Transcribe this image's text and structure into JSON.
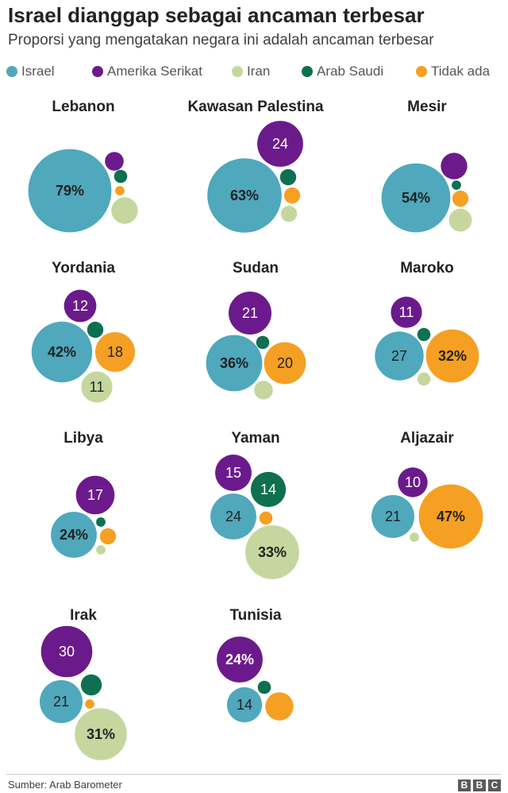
{
  "title": "Israel dianggap sebagai ancaman terbesar",
  "subtitle": "Proporsi yang mengatakan negara ini adalah ancaman terbesar",
  "source": "Sumber: Arab Barometer",
  "logo": [
    "B",
    "B",
    "C"
  ],
  "chart_data": {
    "type": "bubble",
    "legend_position": "top",
    "series": [
      {
        "name": "Israel",
        "color": "#4fa8bc"
      },
      {
        "name": "Amerika Serikat",
        "color": "#6b1a8c"
      },
      {
        "name": "Iran",
        "color": "#c5d79e"
      },
      {
        "name": "Arab Saudi",
        "color": "#0e7050"
      },
      {
        "name": "Tidak ada",
        "color": "#f5a023"
      }
    ],
    "panels": [
      {
        "title": "Lebanon",
        "values": {
          "Israel": 79,
          "Amerika Serikat": 4,
          "Iran": 8,
          "Arab Saudi": 2,
          "Tidak ada": 1
        },
        "labels": {
          "Israel": "79%"
        },
        "strong": [
          "Israel"
        ]
      },
      {
        "title": "Kawasan Palestina",
        "values": {
          "Israel": 63,
          "Amerika Serikat": 24,
          "Iran": 3,
          "Arab Saudi": 3,
          "Tidak ada": 3
        },
        "labels": {
          "Israel": "63%",
          "Amerika Serikat": "24"
        },
        "strong": [
          "Israel"
        ]
      },
      {
        "title": "Mesir",
        "values": {
          "Israel": 54,
          "Amerika Serikat": 8,
          "Iran": 6,
          "Arab Saudi": 1,
          "Tidak ada": 3
        },
        "labels": {
          "Israel": "54%"
        },
        "strong": [
          "Israel"
        ]
      },
      {
        "title": "Yordania",
        "values": {
          "Israel": 42,
          "Amerika Serikat": 12,
          "Iran": 11,
          "Arab Saudi": 3,
          "Tidak ada": 18
        },
        "labels": {
          "Israel": "42%",
          "Amerika Serikat": "12",
          "Iran": "11",
          "Tidak ada": "18"
        },
        "strong": [
          "Israel"
        ]
      },
      {
        "title": "Sudan",
        "values": {
          "Israel": 36,
          "Amerika Serikat": 21,
          "Iran": 4,
          "Arab Saudi": 2,
          "Tidak ada": 20
        },
        "labels": {
          "Israel": "36%",
          "Amerika Serikat": "21",
          "Tidak ada": "20"
        },
        "strong": [
          "Israel"
        ]
      },
      {
        "title": "Maroko",
        "values": {
          "Israel": 27,
          "Amerika Serikat": 11,
          "Iran": 2,
          "Arab Saudi": 2,
          "Tidak ada": 32
        },
        "labels": {
          "Israel": "27",
          "Amerika Serikat": "11",
          "Tidak ada": "32%"
        },
        "strong": [
          "Tidak ada"
        ]
      },
      {
        "title": "Libya",
        "values": {
          "Israel": 24,
          "Amerika Serikat": 17,
          "Iran": 1,
          "Arab Saudi": 1,
          "Tidak ada": 3
        },
        "labels": {
          "Israel": "24%",
          "Amerika Serikat": "17"
        },
        "strong": [
          "Israel"
        ]
      },
      {
        "title": "Yaman",
        "values": {
          "Israel": 24,
          "Amerika Serikat": 15,
          "Iran": 33,
          "Arab Saudi": 14,
          "Tidak ada": 2
        },
        "labels": {
          "Israel": "24",
          "Amerika Serikat": "15",
          "Iran": "33%",
          "Arab Saudi": "14"
        },
        "strong": [
          "Iran"
        ]
      },
      {
        "title": "Aljazair",
        "values": {
          "Israel": 21,
          "Amerika Serikat": 10,
          "Iran": 1,
          "Arab Saudi": 0,
          "Tidak ada": 47
        },
        "labels": {
          "Israel": "21",
          "Amerika Serikat": "10",
          "Tidak ada": "47%"
        },
        "strong": [
          "Tidak ada"
        ]
      },
      {
        "title": "Irak",
        "values": {
          "Israel": 21,
          "Amerika Serikat": 30,
          "Iran": 31,
          "Arab Saudi": 5,
          "Tidak ada": 1
        },
        "labels": {
          "Israel": "21",
          "Amerika Serikat": "30",
          "Iran": "31%"
        },
        "strong": [
          "Iran"
        ]
      },
      {
        "title": "Tunisia",
        "values": {
          "Israel": 14,
          "Amerika Serikat": 24,
          "Iran": 0,
          "Arab Saudi": 2,
          "Tidak ada": 9
        },
        "labels": {
          "Israel": "14",
          "Amerika Serikat": "24%"
        },
        "strong": [
          "Amerika Serikat"
        ]
      }
    ]
  }
}
